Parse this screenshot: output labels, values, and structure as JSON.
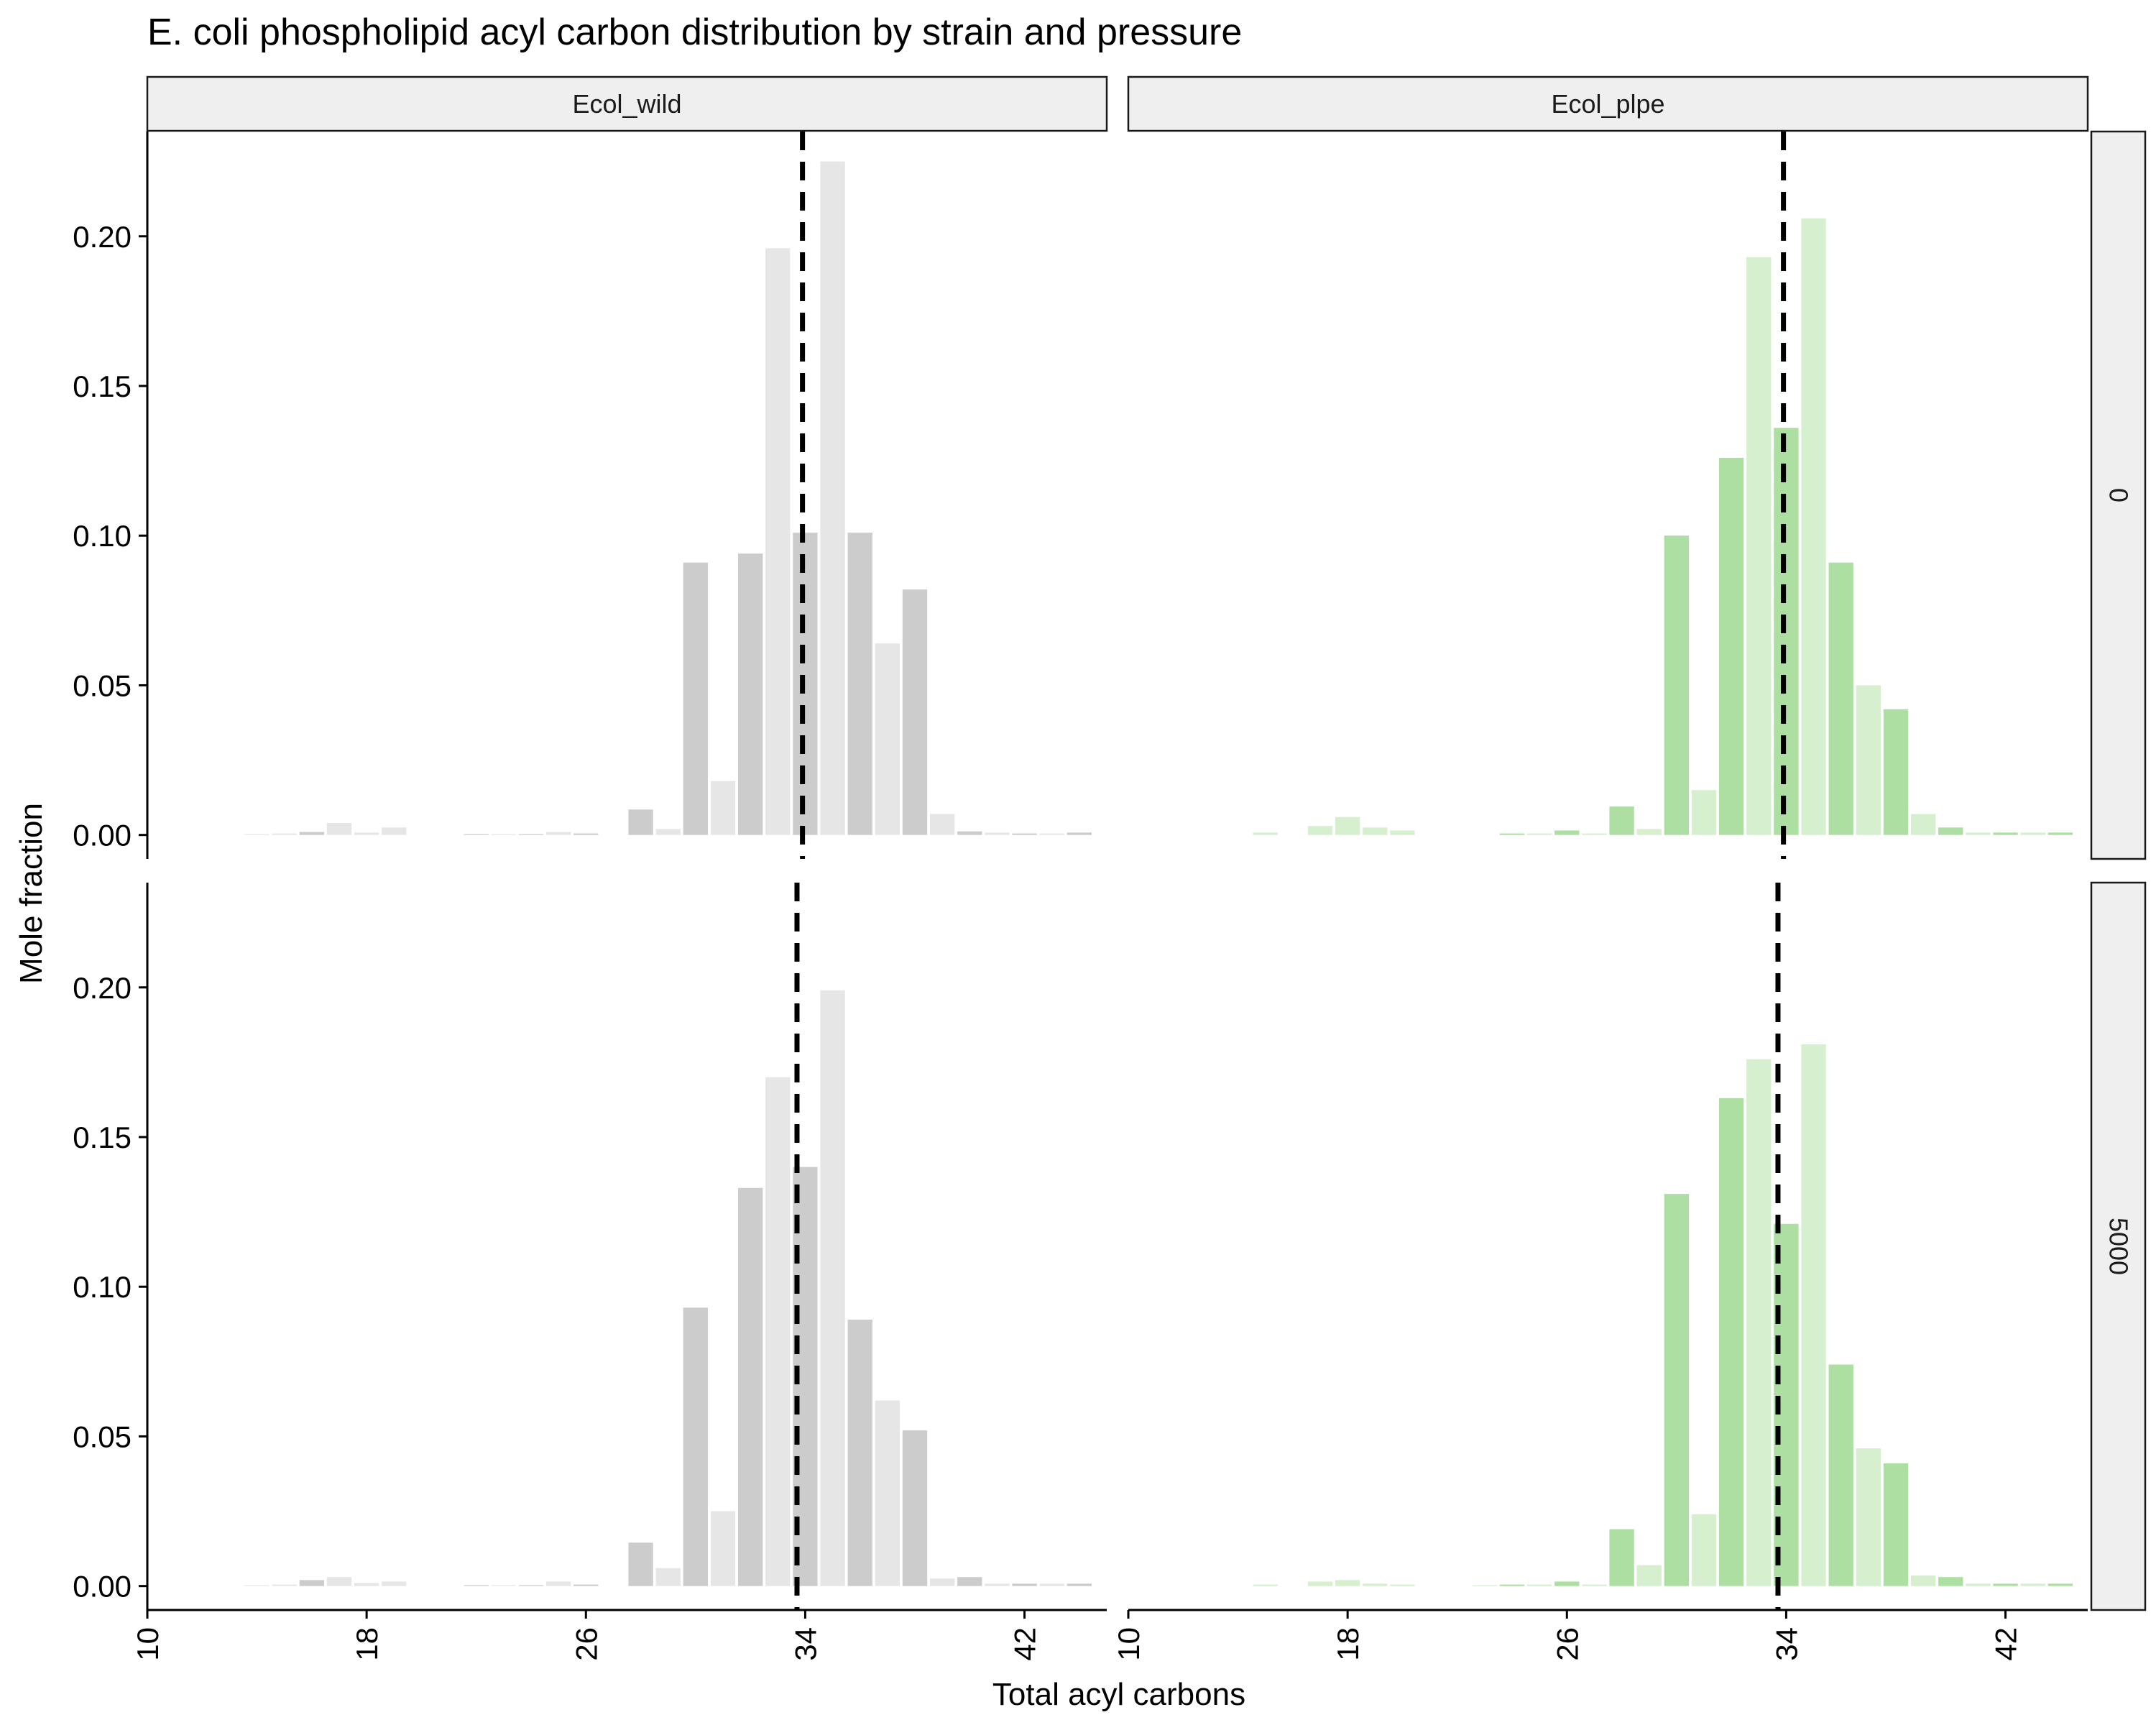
{
  "chart_data": {
    "type": "bar",
    "title": "E. coli phospholipid acyl carbon distribution by strain and pressure",
    "xlabel": "Total acyl carbons",
    "ylabel": "Mole fraction",
    "xlim": [
      10,
      45
    ],
    "ylim": [
      -0.008,
      0.235
    ],
    "x_ticks": [
      10,
      18,
      26,
      34,
      42
    ],
    "y_ticks": [
      0.0,
      0.05,
      0.1,
      0.15,
      0.2
    ],
    "x_tick_labels": [
      "10",
      "18",
      "26",
      "34",
      "42"
    ],
    "y_tick_labels": [
      "0.00",
      "0.05",
      "0.10",
      "0.15",
      "0.20"
    ],
    "grid": false,
    "legend": "none",
    "facet_cols": [
      "Ecol_wild",
      "Ecol_plpe"
    ],
    "facet_rows": [
      "0",
      "5000"
    ],
    "colors": {
      "Ecol_wild": {
        "dark": "#cccccc",
        "light": "#e6e6e6"
      },
      "Ecol_plpe": {
        "dark": "#addfa3",
        "light": "#d5efcf"
      }
    },
    "x": [
      11,
      12,
      13,
      14,
      15,
      16,
      17,
      18,
      19,
      20,
      21,
      22,
      23,
      24,
      25,
      26,
      27,
      28,
      29,
      30,
      31,
      32,
      33,
      34,
      35,
      36,
      37,
      38,
      39,
      40,
      41,
      42,
      43,
      44
    ],
    "panels": [
      {
        "strain": "Ecol_wild",
        "pressure": "0",
        "mean_line": 33.9,
        "values": [
          0.0,
          0.0,
          0.0,
          0.0003,
          0.0005,
          0.001,
          0.004,
          0.0008,
          0.0025,
          0.0,
          0.0,
          0.0003,
          0.0003,
          0.0003,
          0.001,
          0.0005,
          0.0,
          0.0085,
          0.002,
          0.091,
          0.018,
          0.094,
          0.196,
          0.101,
          0.225,
          0.101,
          0.064,
          0.082,
          0.007,
          0.0012,
          0.0008,
          0.0005,
          0.0005,
          0.0008
        ]
      },
      {
        "strain": "Ecol_plpe",
        "pressure": "0",
        "mean_line": 33.9,
        "values": [
          0.0,
          0.0,
          0.0,
          0.0,
          0.0008,
          0.0,
          0.003,
          0.006,
          0.0025,
          0.0015,
          0.0,
          0.0,
          0.0,
          0.0005,
          0.0005,
          0.0015,
          0.0005,
          0.0095,
          0.002,
          0.1,
          0.015,
          0.126,
          0.193,
          0.136,
          0.206,
          0.091,
          0.05,
          0.042,
          0.007,
          0.0025,
          0.0008,
          0.0008,
          0.0008,
          0.0008
        ]
      },
      {
        "strain": "Ecol_wild",
        "pressure": "5000",
        "mean_line": 33.7,
        "values": [
          0.0,
          0.0,
          0.0,
          0.0003,
          0.0005,
          0.002,
          0.003,
          0.001,
          0.0015,
          0.0,
          0.0,
          0.0003,
          0.0003,
          0.0003,
          0.0015,
          0.0005,
          0.0,
          0.0145,
          0.006,
          0.093,
          0.025,
          0.133,
          0.17,
          0.14,
          0.199,
          0.089,
          0.062,
          0.052,
          0.0025,
          0.003,
          0.0008,
          0.0008,
          0.0008,
          0.0008
        ]
      },
      {
        "strain": "Ecol_plpe",
        "pressure": "5000",
        "mean_line": 33.7,
        "values": [
          0.0,
          0.0,
          0.0,
          0.0,
          0.0005,
          0.0,
          0.0015,
          0.002,
          0.0008,
          0.0005,
          0.0,
          0.0,
          0.0003,
          0.0005,
          0.0005,
          0.0015,
          0.0005,
          0.019,
          0.007,
          0.131,
          0.024,
          0.163,
          0.176,
          0.121,
          0.181,
          0.074,
          0.046,
          0.041,
          0.0035,
          0.003,
          0.0008,
          0.0008,
          0.0008,
          0.0008
        ]
      }
    ]
  }
}
